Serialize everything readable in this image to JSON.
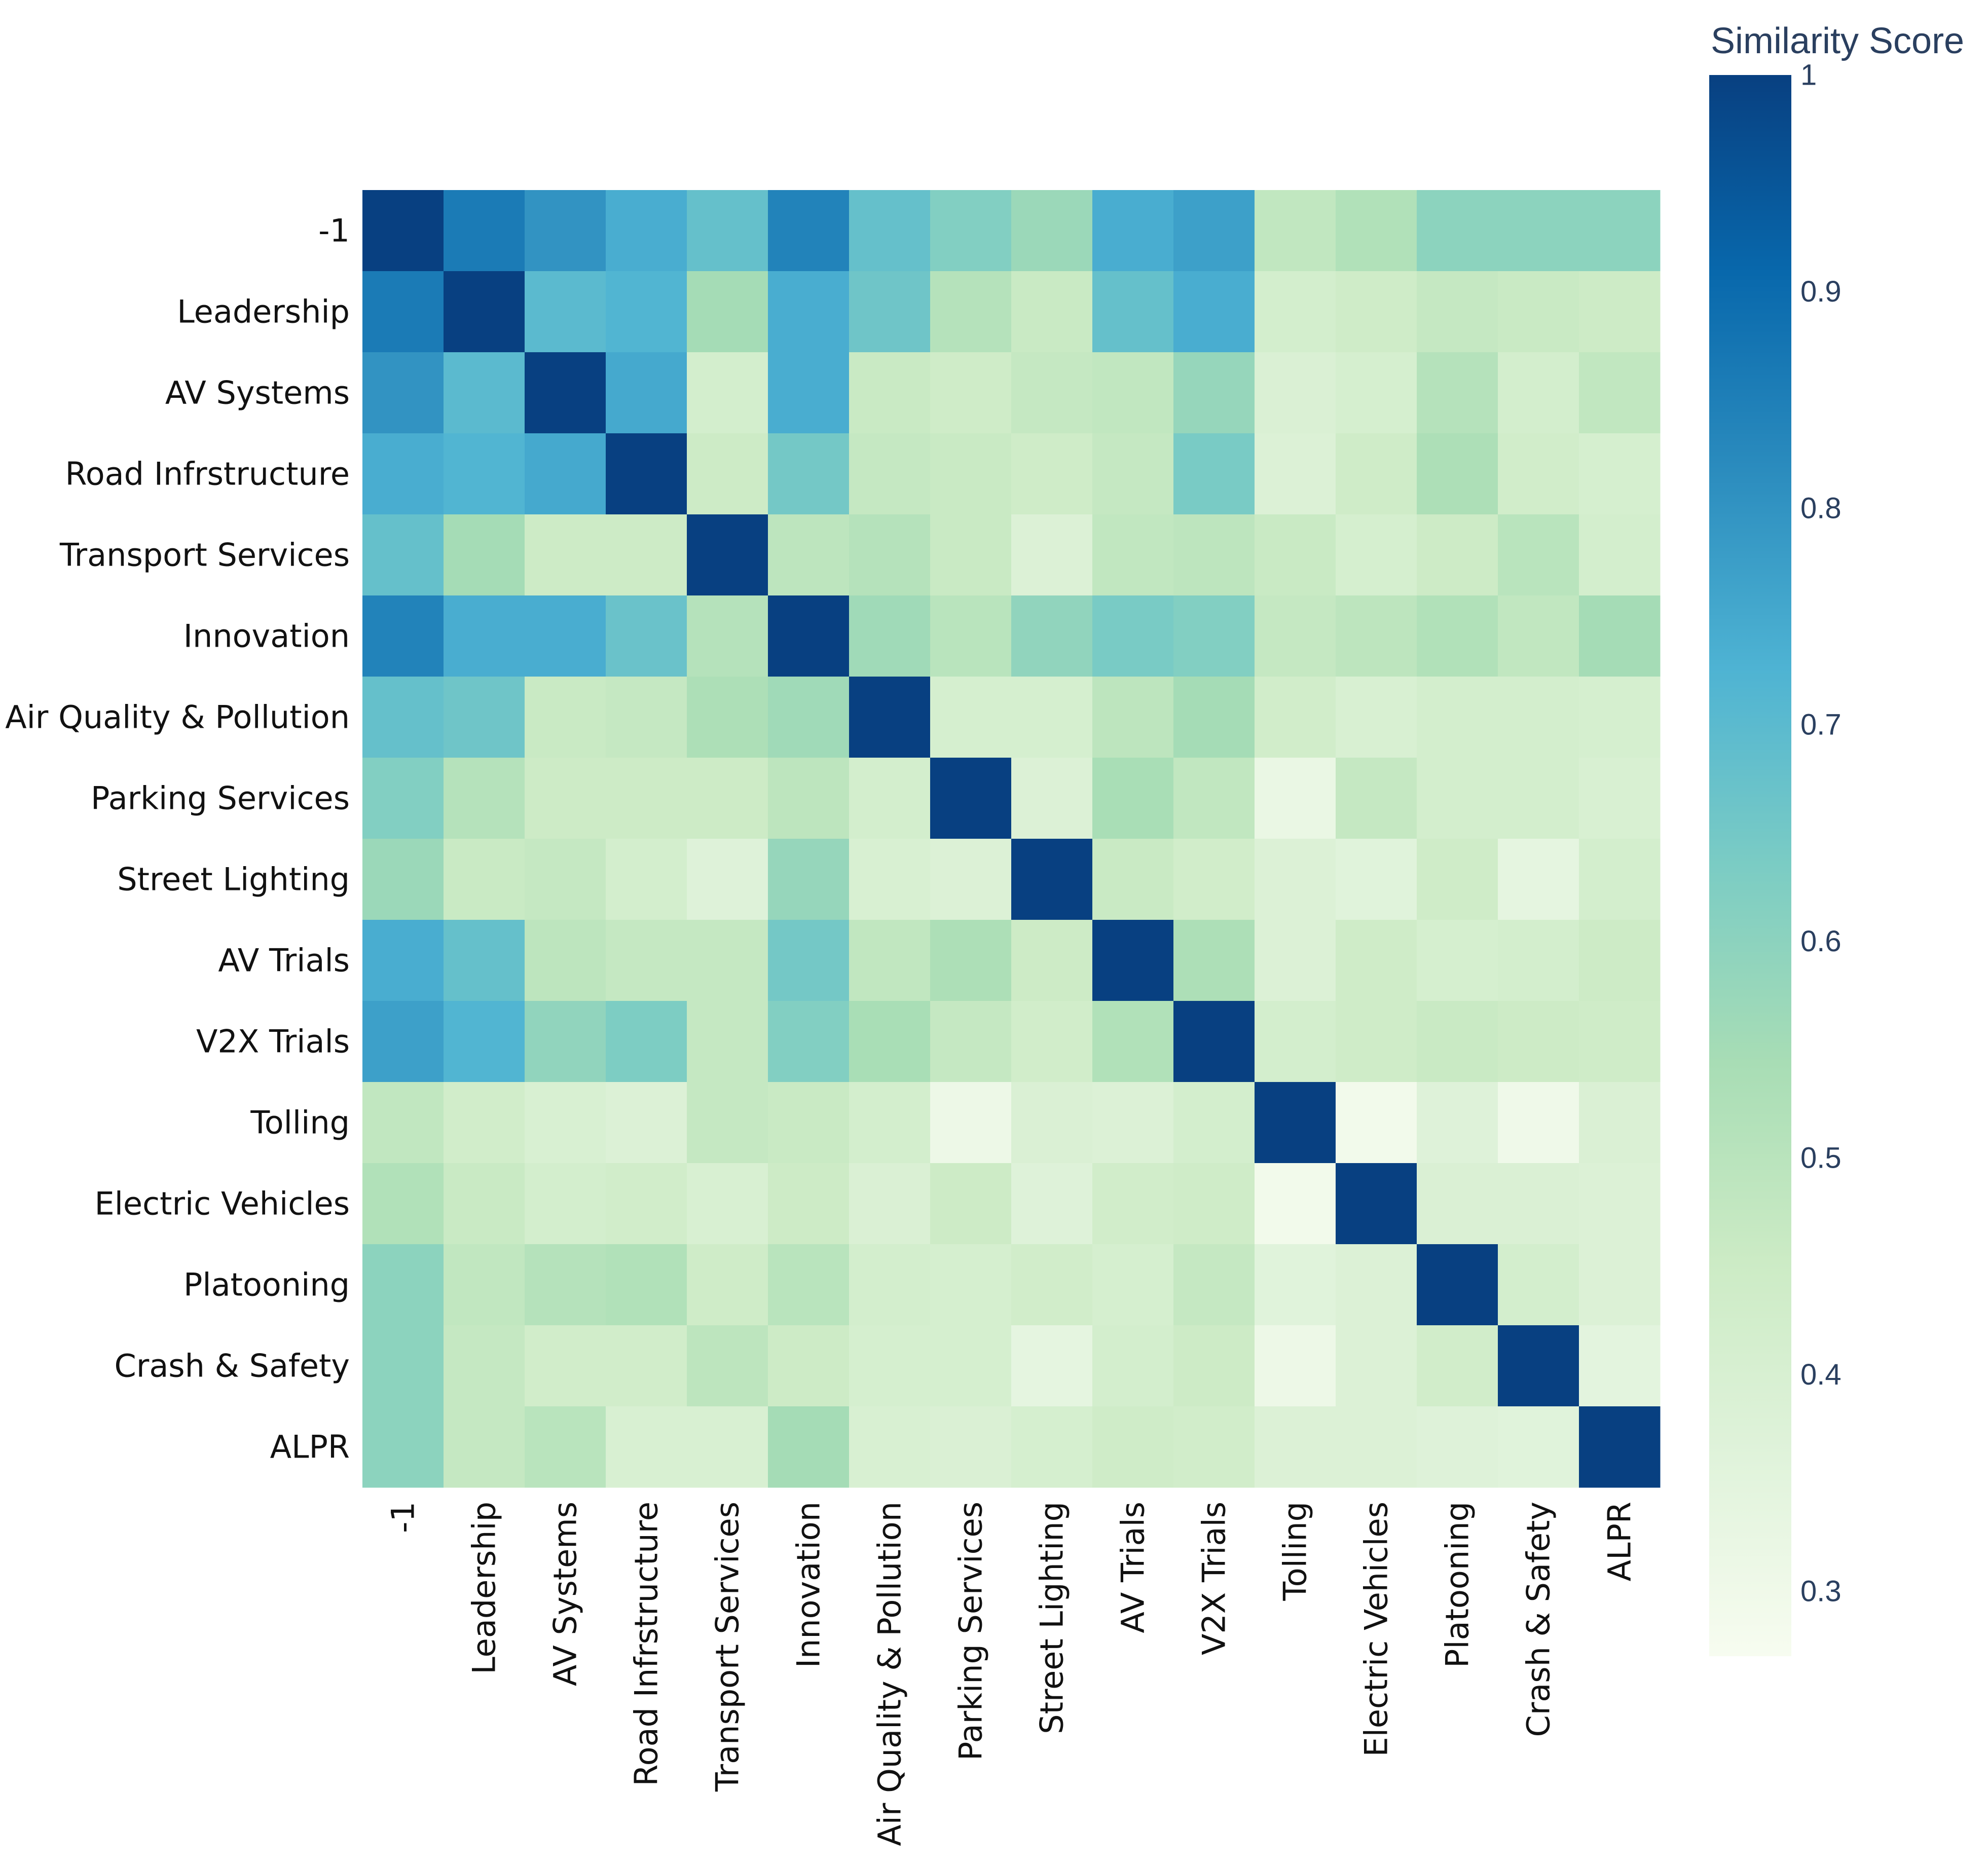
{
  "chart_data": {
    "type": "heatmap",
    "title": "",
    "xlabel": "",
    "ylabel": "",
    "categories": [
      "-1",
      "Leadership",
      "AV Systems",
      "Road Infrstructure",
      "Transport Services",
      "Innovation",
      "Air Quality & Pollution",
      "Parking Services",
      "Street Lighting",
      "AV Trials",
      "V2X Trials",
      "Tolling",
      "Electric Vehicles",
      "Platooning",
      "Crash & Safety",
      "ALPR"
    ],
    "values": [
      [
        1.0,
        0.86,
        0.8,
        0.74,
        0.68,
        0.84,
        0.68,
        0.62,
        0.57,
        0.74,
        0.77,
        0.48,
        0.52,
        0.6,
        0.6,
        0.6
      ],
      [
        0.86,
        1.0,
        0.7,
        0.72,
        0.55,
        0.74,
        0.66,
        0.51,
        0.46,
        0.68,
        0.74,
        0.42,
        0.44,
        0.47,
        0.46,
        0.45
      ],
      [
        0.8,
        0.7,
        1.0,
        0.75,
        0.42,
        0.74,
        0.46,
        0.44,
        0.47,
        0.48,
        0.58,
        0.39,
        0.41,
        0.51,
        0.42,
        0.48
      ],
      [
        0.74,
        0.72,
        0.75,
        1.0,
        0.45,
        0.65,
        0.47,
        0.46,
        0.44,
        0.47,
        0.64,
        0.38,
        0.44,
        0.53,
        0.43,
        0.41
      ],
      [
        0.68,
        0.55,
        0.45,
        0.45,
        1.0,
        0.49,
        0.51,
        0.46,
        0.38,
        0.48,
        0.49,
        0.46,
        0.41,
        0.45,
        0.5,
        0.42
      ],
      [
        0.84,
        0.74,
        0.74,
        0.67,
        0.51,
        1.0,
        0.56,
        0.5,
        0.59,
        0.64,
        0.62,
        0.47,
        0.49,
        0.52,
        0.48,
        0.55
      ],
      [
        0.68,
        0.66,
        0.46,
        0.47,
        0.53,
        0.56,
        1.0,
        0.41,
        0.41,
        0.49,
        0.55,
        0.43,
        0.4,
        0.42,
        0.42,
        0.41
      ],
      [
        0.62,
        0.51,
        0.45,
        0.45,
        0.45,
        0.49,
        0.42,
        1.0,
        0.38,
        0.54,
        0.48,
        0.32,
        0.47,
        0.42,
        0.42,
        0.4
      ],
      [
        0.57,
        0.46,
        0.47,
        0.42,
        0.37,
        0.58,
        0.4,
        0.38,
        1.0,
        0.46,
        0.43,
        0.38,
        0.36,
        0.44,
        0.34,
        0.42
      ],
      [
        0.74,
        0.68,
        0.49,
        0.47,
        0.47,
        0.65,
        0.48,
        0.53,
        0.45,
        1.0,
        0.53,
        0.38,
        0.44,
        0.41,
        0.42,
        0.45
      ],
      [
        0.77,
        0.72,
        0.59,
        0.63,
        0.47,
        0.62,
        0.54,
        0.47,
        0.43,
        0.52,
        1.0,
        0.42,
        0.44,
        0.46,
        0.45,
        0.44
      ],
      [
        0.48,
        0.43,
        0.4,
        0.38,
        0.47,
        0.46,
        0.42,
        0.31,
        0.39,
        0.38,
        0.42,
        1.0,
        0.29,
        0.37,
        0.3,
        0.39
      ],
      [
        0.52,
        0.46,
        0.42,
        0.43,
        0.4,
        0.45,
        0.39,
        0.45,
        0.37,
        0.43,
        0.44,
        0.29,
        1.0,
        0.39,
        0.39,
        0.38
      ],
      [
        0.6,
        0.48,
        0.51,
        0.52,
        0.44,
        0.5,
        0.42,
        0.41,
        0.43,
        0.41,
        0.47,
        0.36,
        0.38,
        1.0,
        0.42,
        0.38
      ],
      [
        0.6,
        0.47,
        0.43,
        0.43,
        0.49,
        0.45,
        0.41,
        0.41,
        0.34,
        0.42,
        0.45,
        0.31,
        0.38,
        0.43,
        1.0,
        0.35
      ],
      [
        0.6,
        0.47,
        0.5,
        0.4,
        0.4,
        0.55,
        0.4,
        0.39,
        0.41,
        0.44,
        0.43,
        0.38,
        0.38,
        0.37,
        0.36,
        1.0
      ]
    ],
    "colorbar": {
      "title": "Similarity Score",
      "range": [
        0.27,
        1.0
      ],
      "ticks": [
        0.3,
        0.4,
        0.5,
        0.6,
        0.7,
        0.8,
        0.9,
        1.0
      ],
      "tick_labels": [
        "0.3",
        "0.4",
        "0.5",
        "0.6",
        "0.7",
        "0.8",
        "0.9",
        "1"
      ],
      "colorscale": [
        [
          0.0,
          "#f7fcf0"
        ],
        [
          0.125,
          "#e0f3db"
        ],
        [
          0.25,
          "#ccebc5"
        ],
        [
          0.375,
          "#a8ddb5"
        ],
        [
          0.5,
          "#7bccc4"
        ],
        [
          0.625,
          "#4eb3d3"
        ],
        [
          0.75,
          "#2b8cbe"
        ],
        [
          0.875,
          "#0868ac"
        ],
        [
          1.0,
          "#084081"
        ]
      ]
    },
    "grid": false,
    "legend": "right"
  }
}
